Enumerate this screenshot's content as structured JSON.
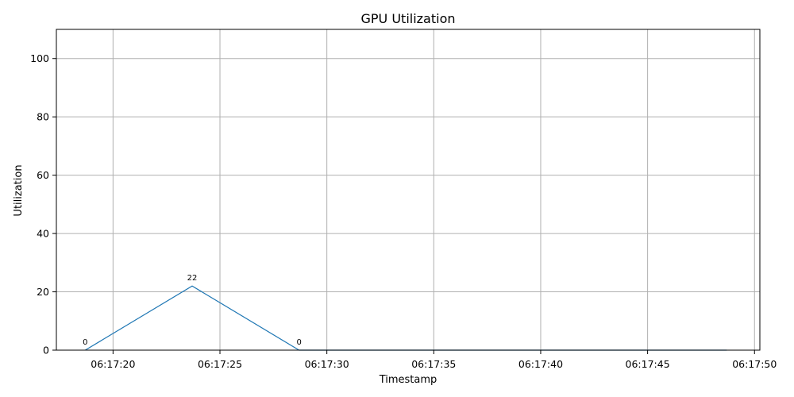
{
  "chart_data": {
    "type": "line",
    "title": "GPU Utilization",
    "xlabel": "Timestamp",
    "ylabel": "Utilization",
    "x": [
      "06:17:18.7",
      "06:17:23.7",
      "06:17:28.7",
      "06:17:33.7",
      "06:17:38.7",
      "06:17:43.7",
      "06:17:48.7"
    ],
    "x_seconds_of_minute": [
      18.7,
      23.7,
      28.7,
      33.7,
      38.7,
      43.7,
      48.7
    ],
    "xlim_seconds": [
      17.35,
      50.25
    ],
    "x_ticks_seconds": [
      20,
      25,
      30,
      35,
      40,
      45,
      50
    ],
    "x_tick_labels": [
      "06:17:20",
      "06:17:25",
      "06:17:30",
      "06:17:35",
      "06:17:40",
      "06:17:45",
      "06:17:50"
    ],
    "series": [
      {
        "values": [
          0,
          22,
          0,
          0,
          0,
          0,
          0
        ],
        "color": "#1f77b4"
      }
    ],
    "data_labels": [
      {
        "index": 0,
        "text": "0"
      },
      {
        "index": 1,
        "text": "22"
      },
      {
        "index": 2,
        "text": "0"
      }
    ],
    "ylim": [
      0,
      110
    ],
    "y_ticks": [
      0,
      20,
      40,
      60,
      80,
      100
    ],
    "y_tick_labels": [
      "0",
      "20",
      "40",
      "60",
      "80",
      "100"
    ],
    "grid": true,
    "legend": false
  }
}
